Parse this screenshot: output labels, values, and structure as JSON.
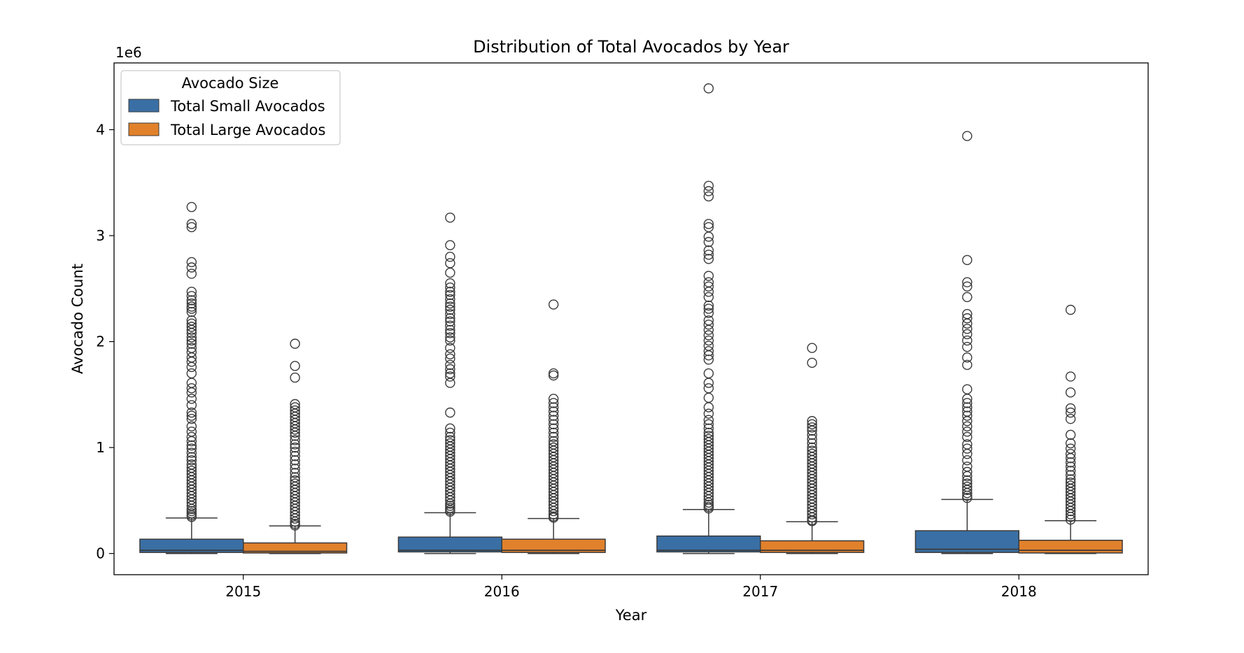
{
  "chart_data": {
    "type": "box",
    "title": "Distribution of Total Avocados by Year",
    "xlabel": "Year",
    "ylabel": "Avocado Count",
    "y_offset_label": "1e6",
    "ylim": [
      -200000,
      4630000
    ],
    "yticks": [
      0,
      1000000,
      2000000,
      3000000,
      4000000
    ],
    "ytick_labels": [
      "0",
      "1",
      "2",
      "3",
      "4"
    ],
    "categories": [
      "2015",
      "2016",
      "2017",
      "2018"
    ],
    "legend": {
      "title": "Avocado Size",
      "placement": "top-left"
    },
    "series": [
      {
        "name": "Total Small Avocados",
        "color": "#3a6fa5",
        "boxes": [
          {
            "q1": 10000,
            "median": 30000,
            "q3": 135000,
            "whisker_low": 0,
            "whisker_high": 335000,
            "outliers": [
              3270000,
              3110000,
              3080000,
              2750000,
              2700000,
              2640000,
              2470000,
              2430000,
              2390000,
              2360000,
              2330000,
              2310000,
              2280000,
              2200000,
              2170000,
              2140000,
              2110000,
              2080000,
              2040000,
              2010000,
              1980000,
              1940000,
              1900000,
              1850000,
              1810000,
              1760000,
              1700000,
              1610000,
              1560000,
              1520000,
              1460000,
              1400000,
              1330000,
              1300000,
              1270000,
              1200000,
              1150000,
              1100000,
              1060000,
              1020000,
              990000,
              950000,
              910000,
              880000,
              840000,
              810000,
              780000,
              750000,
              720000,
              690000,
              660000,
              630000,
              600000,
              570000,
              540000,
              510000,
              480000,
              450000,
              420000,
              400000,
              380000,
              360000,
              345000
            ]
          },
          {
            "q1": 15000,
            "median": 30000,
            "q3": 155000,
            "whisker_low": 0,
            "whisker_high": 385000,
            "outliers": [
              3170000,
              2910000,
              2800000,
              2740000,
              2650000,
              2550000,
              2510000,
              2470000,
              2440000,
              2400000,
              2360000,
              2330000,
              2300000,
              2260000,
              2220000,
              2190000,
              2150000,
              2110000,
              2080000,
              2040000,
              2010000,
              1940000,
              1880000,
              1840000,
              1780000,
              1740000,
              1700000,
              1670000,
              1610000,
              1330000,
              1180000,
              1140000,
              1100000,
              1070000,
              1040000,
              1010000,
              980000,
              950000,
              920000,
              890000,
              860000,
              830000,
              800000,
              770000,
              740000,
              710000,
              680000,
              650000,
              620000,
              590000,
              560000,
              530000,
              500000,
              470000,
              450000,
              430000,
              410000,
              395000
            ]
          },
          {
            "q1": 15000,
            "median": 30000,
            "q3": 165000,
            "whisker_low": 0,
            "whisker_high": 415000,
            "outliers": [
              4390000,
              3470000,
              3420000,
              3370000,
              3110000,
              3080000,
              2990000,
              2940000,
              2860000,
              2820000,
              2780000,
              2620000,
              2560000,
              2520000,
              2470000,
              2420000,
              2340000,
              2310000,
              2270000,
              2200000,
              2160000,
              2110000,
              2060000,
              2010000,
              1960000,
              1910000,
              1870000,
              1830000,
              1700000,
              1610000,
              1560000,
              1470000,
              1380000,
              1320000,
              1260000,
              1220000,
              1180000,
              1140000,
              1110000,
              1080000,
              1050000,
              1020000,
              990000,
              960000,
              930000,
              900000,
              870000,
              840000,
              810000,
              780000,
              750000,
              720000,
              690000,
              660000,
              630000,
              600000,
              570000,
              540000,
              510000,
              480000,
              460000,
              440000,
              425000
            ]
          },
          {
            "q1": 10000,
            "median": 40000,
            "q3": 215000,
            "whisker_low": 0,
            "whisker_high": 510000,
            "outliers": [
              3940000,
              2770000,
              2560000,
              2520000,
              2420000,
              2260000,
              2220000,
              2170000,
              2120000,
              2070000,
              2010000,
              1950000,
              1850000,
              1780000,
              1550000,
              1460000,
              1420000,
              1380000,
              1340000,
              1300000,
              1250000,
              1200000,
              1150000,
              1100000,
              1030000,
              990000,
              940000,
              880000,
              820000,
              770000,
              730000,
              690000,
              660000,
              630000,
              600000,
              570000,
              545000,
              525000
            ]
          }
        ]
      },
      {
        "name": "Total Large Avocados",
        "color": "#e1812c",
        "boxes": [
          {
            "q1": 5000,
            "median": 20000,
            "q3": 100000,
            "whisker_low": 0,
            "whisker_high": 260000,
            "outliers": [
              1980000,
              1770000,
              1660000,
              1410000,
              1380000,
              1350000,
              1320000,
              1290000,
              1260000,
              1230000,
              1200000,
              1170000,
              1140000,
              1110000,
              1070000,
              1030000,
              1000000,
              960000,
              920000,
              880000,
              840000,
              800000,
              760000,
              720000,
              690000,
              660000,
              630000,
              600000,
              570000,
              540000,
              510000,
              480000,
              450000,
              420000,
              390000,
              360000,
              330000,
              300000,
              280000,
              265000
            ]
          },
          {
            "q1": 10000,
            "median": 30000,
            "q3": 135000,
            "whisker_low": 0,
            "whisker_high": 330000,
            "outliers": [
              2350000,
              1700000,
              1680000,
              1460000,
              1420000,
              1380000,
              1340000,
              1300000,
              1260000,
              1220000,
              1180000,
              1140000,
              1100000,
              1060000,
              1030000,
              1000000,
              970000,
              940000,
              910000,
              880000,
              850000,
              820000,
              790000,
              760000,
              730000,
              700000,
              670000,
              640000,
              610000,
              580000,
              550000,
              520000,
              490000,
              460000,
              430000,
              400000,
              370000,
              350000,
              338000
            ]
          },
          {
            "q1": 10000,
            "median": 30000,
            "q3": 120000,
            "whisker_low": 0,
            "whisker_high": 300000,
            "outliers": [
              1940000,
              1800000,
              1250000,
              1220000,
              1190000,
              1160000,
              1120000,
              1080000,
              1040000,
              1000000,
              970000,
              940000,
              910000,
              880000,
              850000,
              820000,
              790000,
              760000,
              730000,
              700000,
              670000,
              640000,
              610000,
              580000,
              550000,
              520000,
              490000,
              460000,
              430000,
              400000,
              370000,
              340000,
              315000,
              305000
            ]
          },
          {
            "q1": 5000,
            "median": 30000,
            "q3": 125000,
            "whisker_low": 0,
            "whisker_high": 310000,
            "outliers": [
              2300000,
              1670000,
              1520000,
              1370000,
              1330000,
              1270000,
              1120000,
              1040000,
              990000,
              940000,
              900000,
              860000,
              820000,
              780000,
              740000,
              700000,
              670000,
              640000,
              610000,
              580000,
              550000,
              520000,
              490000,
              460000,
              430000,
              400000,
              370000,
              345000,
              320000
            ]
          }
        ]
      }
    ]
  }
}
